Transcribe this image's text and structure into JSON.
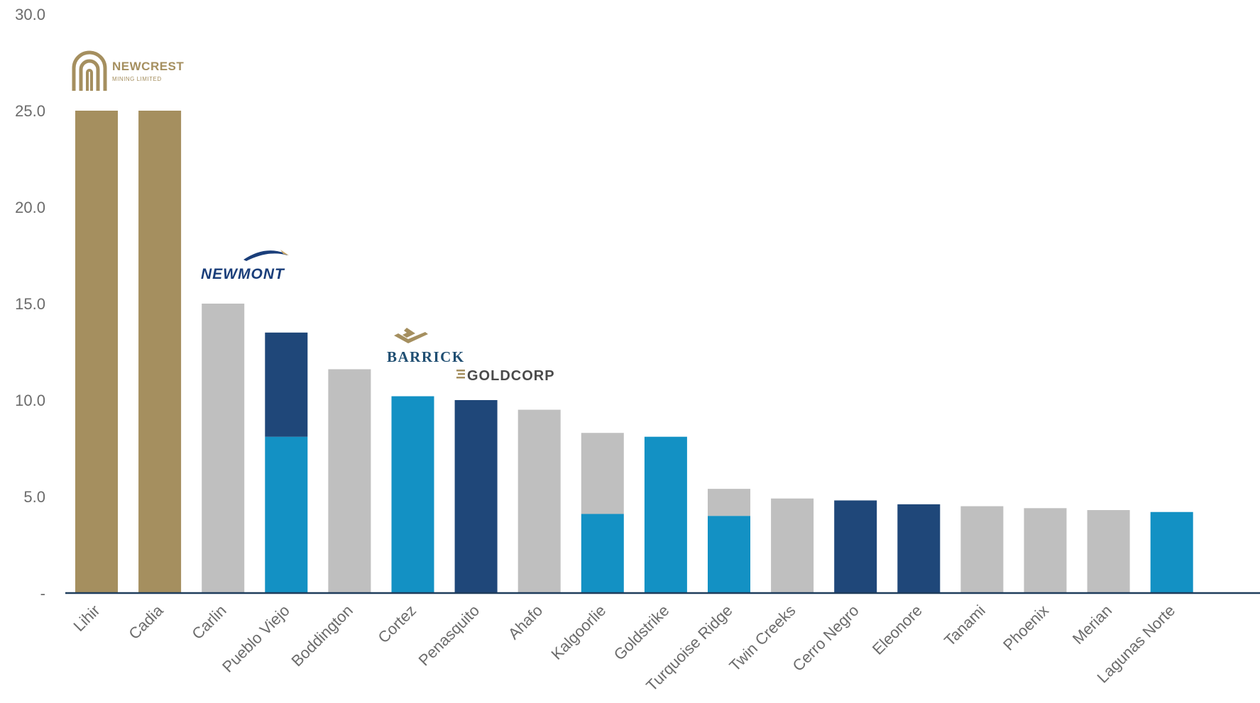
{
  "colors": {
    "newcrest": "#A58F5F",
    "other": "#BFBFBF",
    "barrick": "#1391C4",
    "goldcorp": "#1F4779",
    "axis": "#1F3D5C",
    "newmont_text": "#1A3E7A",
    "barrick_text": "#1F4E72",
    "goldcorp_text": "#4A4A4A",
    "gold_logo": "#A58F5F"
  },
  "chart_data": {
    "type": "bar",
    "stacked": true,
    "ylim": [
      0,
      30
    ],
    "yticks": [
      "-",
      "5.0",
      "10.0",
      "15.0",
      "20.0",
      "25.0",
      "30.0"
    ],
    "ytick_values": [
      0,
      5,
      10,
      15,
      20,
      25,
      30
    ],
    "grid": false,
    "categories": [
      "Lihir",
      "Cadia",
      "Carlin",
      "Pueblo Viejo",
      "Boddington",
      "Cortez",
      "Penasquito",
      "Ahafo",
      "Kalgoorlie",
      "Goldstrike",
      "Turquoise Ridge",
      "Twin Creeks",
      "Cerro Negro",
      "Eleonore",
      "Tanami",
      "Phoenix",
      "Merian",
      "Lagunas Norte"
    ],
    "bars": [
      {
        "segments": [
          {
            "value": 25.0,
            "color": "newcrest"
          }
        ]
      },
      {
        "segments": [
          {
            "value": 25.0,
            "color": "newcrest"
          }
        ]
      },
      {
        "segments": [
          {
            "value": 15.0,
            "color": "other"
          }
        ]
      },
      {
        "segments": [
          {
            "value": 8.1,
            "color": "barrick"
          },
          {
            "value": 5.4,
            "color": "goldcorp"
          }
        ]
      },
      {
        "segments": [
          {
            "value": 11.6,
            "color": "other"
          }
        ]
      },
      {
        "segments": [
          {
            "value": 10.2,
            "color": "barrick"
          }
        ]
      },
      {
        "segments": [
          {
            "value": 10.0,
            "color": "goldcorp"
          }
        ]
      },
      {
        "segments": [
          {
            "value": 9.5,
            "color": "other"
          }
        ]
      },
      {
        "segments": [
          {
            "value": 4.1,
            "color": "barrick"
          },
          {
            "value": 4.2,
            "color": "other"
          }
        ]
      },
      {
        "segments": [
          {
            "value": 8.1,
            "color": "barrick"
          }
        ]
      },
      {
        "segments": [
          {
            "value": 4.0,
            "color": "barrick"
          },
          {
            "value": 1.4,
            "color": "other"
          }
        ]
      },
      {
        "segments": [
          {
            "value": 4.9,
            "color": "other"
          }
        ]
      },
      {
        "segments": [
          {
            "value": 4.8,
            "color": "goldcorp"
          }
        ]
      },
      {
        "segments": [
          {
            "value": 4.6,
            "color": "goldcorp"
          }
        ]
      },
      {
        "segments": [
          {
            "value": 4.5,
            "color": "other"
          }
        ]
      },
      {
        "segments": [
          {
            "value": 4.4,
            "color": "other"
          }
        ]
      },
      {
        "segments": [
          {
            "value": 4.3,
            "color": "other"
          }
        ]
      },
      {
        "segments": [
          {
            "value": 4.2,
            "color": "barrick"
          }
        ]
      }
    ]
  },
  "logos": {
    "newcrest": {
      "name": "NEWCREST",
      "subtitle": "MINING LIMITED"
    },
    "newmont": {
      "name": "NEWMONT"
    },
    "barrick": {
      "name": "BARRICK"
    },
    "goldcorp": {
      "name": "GOLDCORP"
    }
  }
}
